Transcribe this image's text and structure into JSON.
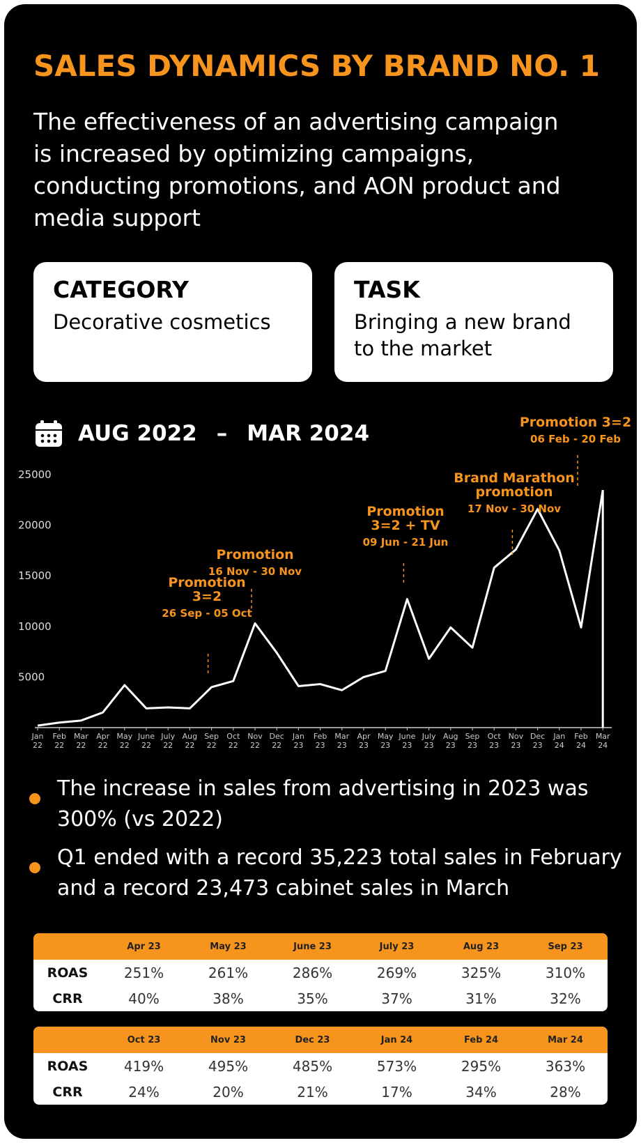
{
  "header": {
    "title": "SALES DYNAMICS BY BRAND NO. 1",
    "subtitle": "The effectiveness of an advertising campaign is increased by optimizing campaigns, conducting promotions, and AON product and media support"
  },
  "cards": [
    {
      "title": "CATEGORY",
      "text": "Decorative cosmetics"
    },
    {
      "title": "TASK",
      "text": "Bringing a new brand to the market"
    }
  ],
  "period": {
    "start": "AUG 2022",
    "end": "MAR 2024"
  },
  "chart_data": {
    "type": "line",
    "categories": [
      "Jan 22",
      "Feb 22",
      "Mar 22",
      "Apr 22",
      "May 22",
      "June 22",
      "July 22",
      "Aug 22",
      "Sep 22",
      "Oct 22",
      "Nov 22",
      "Dec 22",
      "Jan 23",
      "Feb 23",
      "Mar 23",
      "Apr 23",
      "May 23",
      "June 23",
      "July 23",
      "Aug 23",
      "Sep 23",
      "Oct 23",
      "Nov 23",
      "Dec 23",
      "Jan 24",
      "Feb 24",
      "Mar 24"
    ],
    "values": [
      200,
      500,
      700,
      1500,
      4200,
      1900,
      2000,
      1900,
      4000,
      4600,
      10300,
      7400,
      4100,
      4300,
      3700,
      5000,
      5600,
      12700,
      6800,
      9900,
      7900,
      15800,
      17600,
      21600,
      17500,
      9900,
      23473
    ],
    "color": "#ffffff",
    "ylim": [
      0,
      25000
    ],
    "yticks": [
      5000,
      10000,
      15000,
      20000,
      25000
    ],
    "annotations": [
      {
        "lines": [
          "Promotion",
          "3=2"
        ],
        "dates": "26 Sep - 05 Oct"
      },
      {
        "lines": [
          "Promotion"
        ],
        "dates": "16 Nov - 30 Nov"
      },
      {
        "lines": [
          "Promotion",
          "3=2 + TV"
        ],
        "dates": "09 Jun - 21 Jun"
      },
      {
        "lines": [
          "Brand Marathon",
          "promotion"
        ],
        "dates": "17 Nov - 30 Nov"
      },
      {
        "lines": [
          "Promotion 3=2"
        ],
        "dates": "06 Feb - 20 Feb"
      }
    ]
  },
  "bullets": [
    "The increase in sales from advertising in 2023 was 300% (vs 2022)",
    "Q1 ended with a record 35,223 total sales in February and a record 23,473 cabinet sales in March"
  ],
  "tables": [
    {
      "columns": [
        "Apr 23",
        "May 23",
        "June 23",
        "July 23",
        "Aug 23",
        "Sep 23"
      ],
      "rows": [
        {
          "label": "ROAS",
          "cells": [
            "251%",
            "261%",
            "286%",
            "269%",
            "325%",
            "310%"
          ]
        },
        {
          "label": "CRR",
          "cells": [
            "40%",
            "38%",
            "35%",
            "37%",
            "31%",
            "32%"
          ]
        }
      ]
    },
    {
      "columns": [
        "Oct 23",
        "Nov 23",
        "Dec 23",
        "Jan 24",
        "Feb 24",
        "Mar 24"
      ],
      "rows": [
        {
          "label": "ROAS",
          "cells": [
            "419%",
            "495%",
            "485%",
            "573%",
            "295%",
            "363%"
          ]
        },
        {
          "label": "CRR",
          "cells": [
            "24%",
            "20%",
            "21%",
            "17%",
            "34%",
            "28%"
          ]
        }
      ]
    }
  ]
}
